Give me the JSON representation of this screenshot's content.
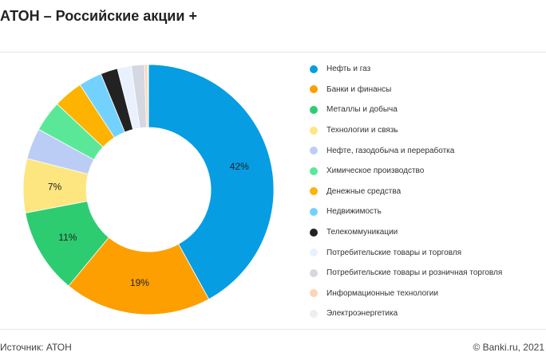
{
  "title": "АТОН – Российские акции +",
  "footer": {
    "source": "Источник: АТОН",
    "copyright": "© Banki.ru, 2021"
  },
  "chart_data": {
    "type": "pie",
    "donut": true,
    "legend_position": "right",
    "categories": [
      "Нефть и газ",
      "Банки и финансы",
      "Металлы и добыча",
      "Технологии и связь",
      "Нефте, газодобыча и переработка",
      "Химическое производство",
      "Денежные средства",
      "Недвижимость",
      "Телекоммуникации",
      "Потребительские товары и торговля",
      "Потребительские товары и розничная торговля",
      "Информационные технологии",
      "Электроэнергетика"
    ],
    "values": [
      42,
      19,
      11,
      7,
      4,
      4,
      3.8,
      3,
      2.2,
      1.8,
      1.7,
      0.4,
      0.1
    ],
    "data_labels": [
      "42%",
      "19%",
      "11%",
      "7%",
      "",
      "",
      "",
      "",
      "",
      "",
      "",
      "",
      ""
    ],
    "colors": [
      "#069de3",
      "#fd9f00",
      "#2ecc71",
      "#fde680",
      "#bccdf5",
      "#5ae898",
      "#fdb300",
      "#72d2fd",
      "#222222",
      "#e9f1fe",
      "#d5d8e0",
      "#fdd5b5",
      "#eceef0"
    ]
  }
}
